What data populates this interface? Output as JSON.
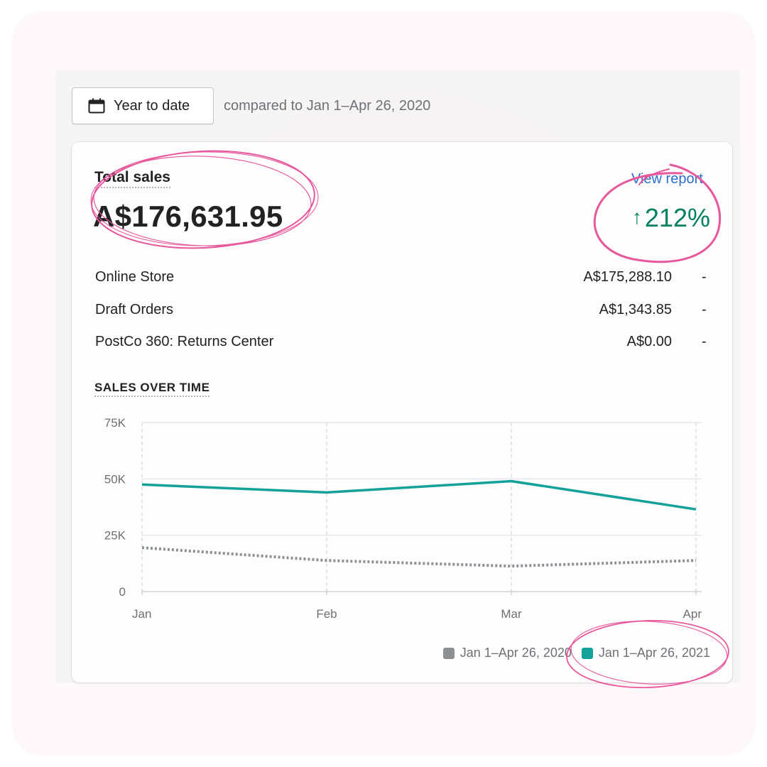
{
  "date_picker": {
    "label": "Year to date",
    "icon": "calendar-icon"
  },
  "comparison_text": "compared to Jan 1–Apr 26, 2020",
  "card": {
    "title": "Total sales",
    "view_report_label": "View report",
    "total_value": "A$176,631.95",
    "change": {
      "arrow": "↑",
      "value": "212%",
      "color": "#008060"
    },
    "breakdown": [
      {
        "label": "Online Store",
        "value": "A$175,288.10",
        "trend": "-"
      },
      {
        "label": "Draft Orders",
        "value": "A$1,343.85",
        "trend": "-"
      },
      {
        "label": "PostCo 360: Returns Center",
        "value": "A$0.00",
        "trend": "-"
      }
    ],
    "section_title": "SALES OVER TIME"
  },
  "chart_data": {
    "type": "line",
    "x": [
      "Jan",
      "Feb",
      "Mar",
      "Apr"
    ],
    "yticks": [
      "0",
      "25K",
      "50K",
      "75K"
    ],
    "ylim": [
      0,
      75000
    ],
    "grid": true,
    "legend_position": "bottom-right",
    "series": [
      {
        "name": "Jan 1–Apr 26, 2020",
        "values": [
          19500,
          13800,
          11300,
          13800
        ],
        "color": "#8c9196",
        "style": "dotted"
      },
      {
        "name": "Jan 1–Apr 26, 2021",
        "values": [
          47500,
          44000,
          49000,
          36500
        ],
        "color": "#13a19a",
        "style": "solid"
      }
    ]
  }
}
